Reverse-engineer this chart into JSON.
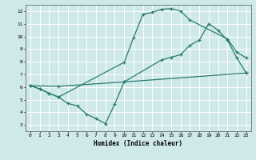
{
  "xlabel": "Humidex (Indice chaleur)",
  "bg_color": "#cfe9e9",
  "line_color": "#2a7a6f",
  "grid_color": "#ffffff",
  "xlim": [
    -0.5,
    23.5
  ],
  "ylim": [
    2.5,
    12.5
  ],
  "xticks": [
    0,
    1,
    2,
    3,
    4,
    5,
    6,
    7,
    8,
    9,
    10,
    11,
    12,
    13,
    14,
    15,
    16,
    17,
    18,
    19,
    20,
    21,
    22,
    23
  ],
  "yticks": [
    3,
    4,
    5,
    6,
    7,
    8,
    9,
    10,
    11,
    12
  ],
  "line1_x": [
    0,
    1,
    2,
    3,
    10,
    11,
    12,
    13,
    14,
    15,
    16,
    17,
    21,
    22,
    23
  ],
  "line1_y": [
    6.1,
    5.85,
    5.5,
    5.2,
    7.95,
    9.9,
    11.75,
    11.9,
    12.15,
    12.2,
    12.0,
    11.3,
    9.8,
    8.75,
    8.3
  ],
  "line2_x": [
    0,
    3,
    10,
    14,
    15,
    16,
    17,
    18,
    19,
    20,
    21,
    22,
    23
  ],
  "line2_y": [
    6.1,
    6.05,
    6.4,
    8.15,
    8.35,
    8.55,
    9.3,
    9.7,
    11.0,
    10.5,
    9.7,
    8.3,
    7.1
  ],
  "line3_x": [
    0,
    1,
    2,
    3,
    4,
    5,
    6,
    7,
    8,
    9,
    10,
    23
  ],
  "line3_y": [
    6.1,
    5.85,
    5.5,
    5.2,
    4.7,
    4.5,
    3.85,
    3.5,
    3.1,
    4.65,
    6.4,
    7.1
  ]
}
